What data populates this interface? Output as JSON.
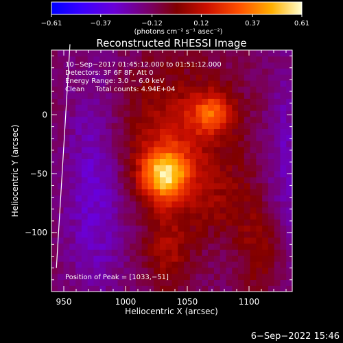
{
  "chart_data": {
    "type": "heatmap",
    "title": "Reconstructed RHESSI Image",
    "xlabel": "Heliocentric X (arcsec)",
    "ylabel": "Heliocentric Y (arcsec)",
    "xlim": [
      940,
      1135
    ],
    "ylim": [
      -150,
      55
    ],
    "x_ticks": [
      950,
      1000,
      1050,
      1100
    ],
    "y_ticks": [
      0,
      -50,
      -100
    ],
    "x_tick_labels": [
      "950",
      "1000",
      "1050",
      "1100"
    ],
    "y_tick_labels": [
      "0",
      "−50",
      "−100"
    ],
    "colorbar": {
      "range": [
        -0.61,
        0.61
      ],
      "ticks": [
        -0.61,
        -0.37,
        -0.12,
        0.12,
        0.37,
        0.61
      ],
      "tick_labels": [
        "−0.61",
        "−0.37",
        "−0.12",
        "0.12",
        "0.37",
        "0.61"
      ],
      "unit_label": "(photons cm⁻² s⁻¹ asec⁻²)"
    },
    "annotations": {
      "line1": "10−Sep−2017 01:45:12.000 to 01:51:12.000",
      "line2": "Detectors: 3F 6F 8F, Att 0",
      "line3": "Energy Range: 3.0 − 6.0 keV",
      "line4": "Clean     Total counts: 4.94E+04",
      "peak": "Position of Peak = [1033,−51]"
    },
    "sources": [
      {
        "x": 1032,
        "y": -51,
        "sx": 14,
        "sy": 16,
        "amp": 0.55
      },
      {
        "x": 1070,
        "y": 2,
        "sx": 12,
        "sy": 12,
        "amp": 0.32
      },
      {
        "x": 1040,
        "y": -15,
        "sx": 35,
        "sy": 40,
        "amp": 0.22
      }
    ],
    "limb_line": [
      [
        944,
        -130
      ],
      [
        955,
        60
      ]
    ],
    "peak_position": [
      1033,
      -51
    ]
  },
  "timestamp": "6−Sep−2022 15:46"
}
